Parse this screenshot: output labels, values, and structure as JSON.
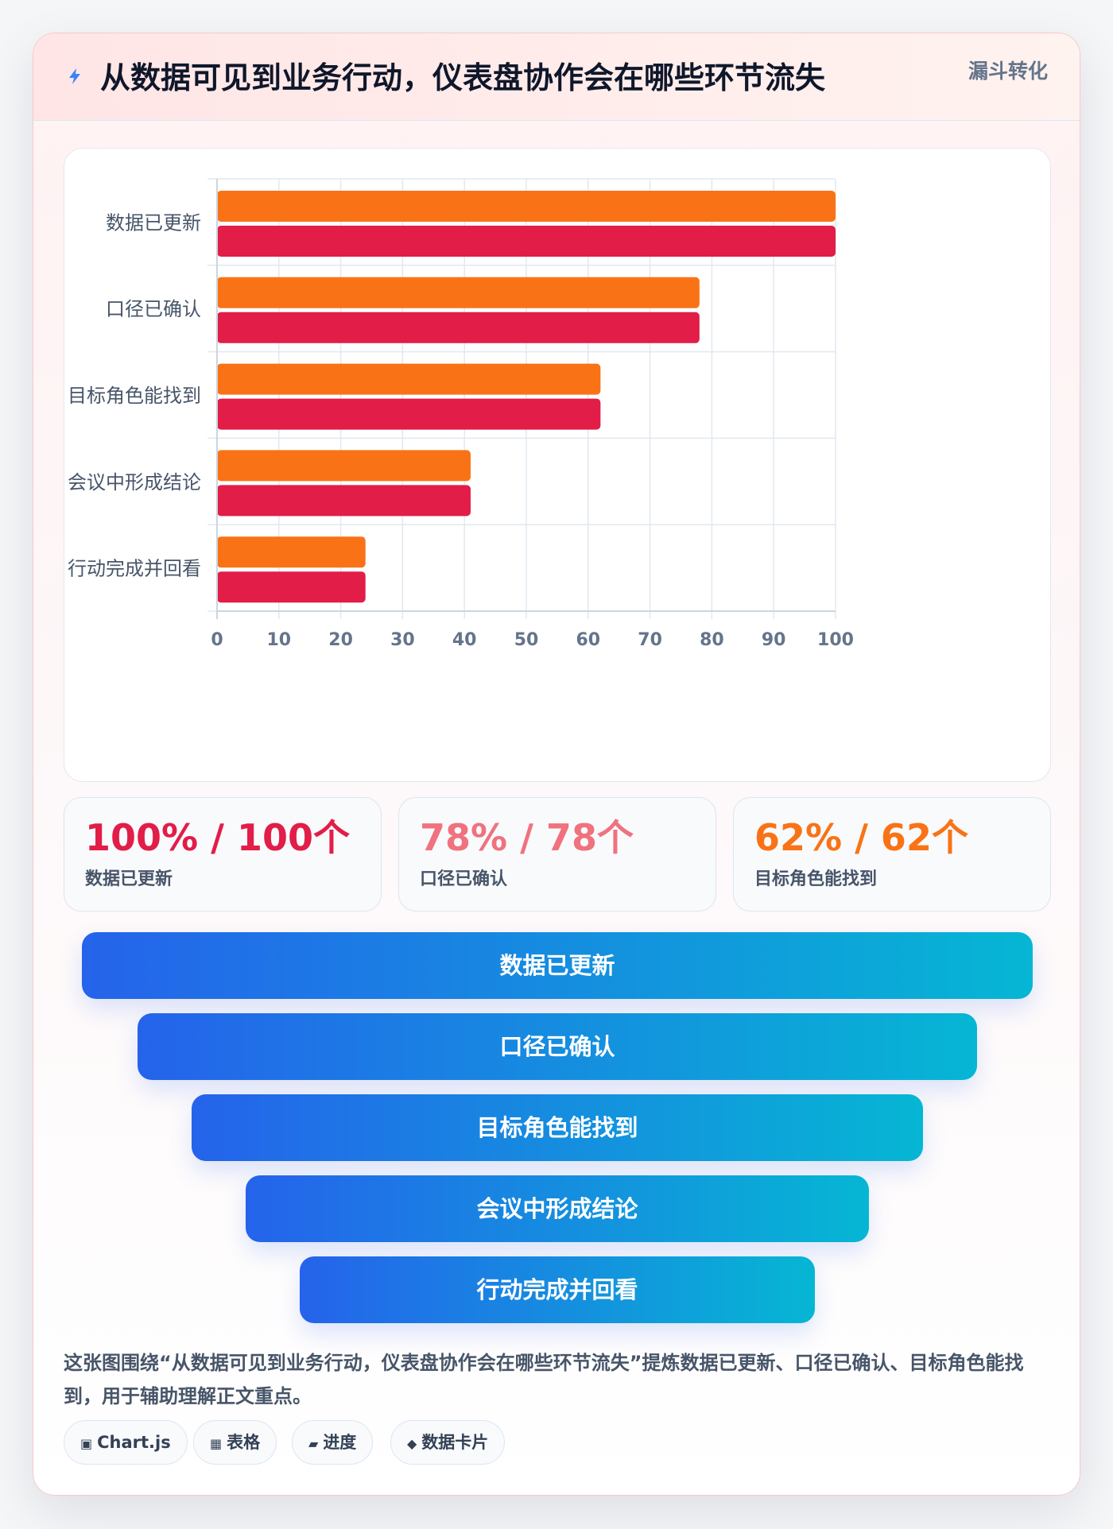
{
  "header": {
    "icon": "lightning-icon",
    "title": "从数据可见到业务行动，仪表盘协作会在哪些环节流失",
    "badge": "漏斗转化"
  },
  "chart_data": {
    "type": "bar",
    "orientation": "horizontal",
    "categories": [
      "数据已更新",
      "口径已确认",
      "目标角色能找到",
      "会议中形成结论",
      "行动完成并回看"
    ],
    "series": [
      {
        "values": [
          100,
          78,
          62,
          41,
          24
        ],
        "color": "#f97316"
      },
      {
        "values": [
          100,
          78,
          62,
          41,
          24
        ],
        "color": "#e11d48"
      }
    ],
    "xlim": [
      0,
      100
    ],
    "xticks": [
      0,
      10,
      20,
      30,
      40,
      50,
      60,
      70,
      80,
      90,
      100
    ],
    "grid": true,
    "legend": "none"
  },
  "stats": [
    {
      "value": "100% / 100个",
      "label": "数据已更新",
      "color": "#e11d48"
    },
    {
      "value": "78% / 78个",
      "label": "口径已确认",
      "color": "#f0727f"
    },
    {
      "value": "62% / 62个",
      "label": "目标角色能找到",
      "color": "#f97316"
    }
  ],
  "funnel": [
    {
      "label": "数据已更新"
    },
    {
      "label": "口径已确认"
    },
    {
      "label": "目标角色能找到"
    },
    {
      "label": "会议中形成结论"
    },
    {
      "label": "行动完成并回看"
    }
  ],
  "description": "这张图围绕“从数据可见到业务行动，仪表盘协作会在哪些环节流失”提炼数据已更新、口径已确认、目标角色能找到，用于辅助理解正文重点。",
  "tags": [
    {
      "icon": "▣",
      "icon_name": "chartjs-icon",
      "label": "Chart.js"
    },
    {
      "icon": "▦",
      "icon_name": "table-icon",
      "label": "表格"
    },
    {
      "icon": "▰",
      "icon_name": "progress-icon",
      "label": "进度"
    },
    {
      "icon": "◆",
      "icon_name": "data-card-icon",
      "label": "数据卡片"
    }
  ]
}
